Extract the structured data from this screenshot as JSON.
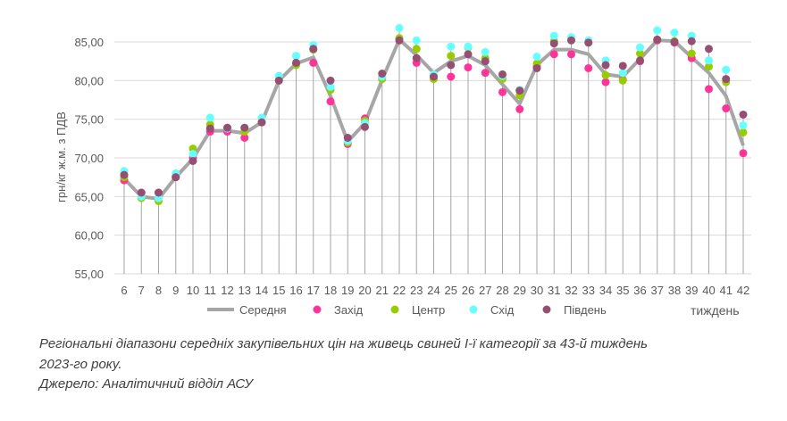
{
  "chart_data": {
    "type": "line",
    "xlabel": "тиждень",
    "ylabel": "грн/кг ж.м. з ПДВ",
    "ylim": [
      55,
      85
    ],
    "yticks": [
      "55,00",
      "60,00",
      "65,00",
      "70,00",
      "75,00",
      "80,00",
      "85,00"
    ],
    "ytick_values": [
      55,
      60,
      65,
      70,
      75,
      80,
      85
    ],
    "grid": true,
    "legend_position": "bottom",
    "x": [
      6,
      7,
      8,
      9,
      10,
      11,
      12,
      13,
      14,
      15,
      16,
      17,
      18,
      19,
      20,
      21,
      22,
      23,
      24,
      25,
      26,
      27,
      28,
      29,
      30,
      31,
      32,
      33,
      34,
      35,
      36,
      37,
      38,
      39,
      40,
      41,
      42
    ],
    "series": [
      {
        "name": "Середня",
        "kind": "line",
        "color": "#A6A6A6",
        "values": [
          67.3,
          65.0,
          64.7,
          67.5,
          69.9,
          73.5,
          73.5,
          73.2,
          74.6,
          80.0,
          82.2,
          83.0,
          78.0,
          72.1,
          74.5,
          80.1,
          85.3,
          83.3,
          81.0,
          82.5,
          83.2,
          82.0,
          79.5,
          77.0,
          82.0,
          84.0,
          84.0,
          83.4,
          80.8,
          80.5,
          82.8,
          85.2,
          85.1,
          83.0,
          81.0,
          78.0,
          71.6
        ]
      },
      {
        "name": "Захід",
        "kind": "dot",
        "color": "#FF3399",
        "values": [
          67.1,
          65.5,
          65.5,
          67.5,
          70.0,
          73.4,
          73.4,
          72.6,
          74.6,
          80.0,
          82.2,
          82.3,
          77.3,
          71.8,
          75.1,
          80.5,
          85.4,
          82.3,
          80.5,
          80.5,
          81.7,
          81.0,
          78.5,
          76.3,
          81.8,
          83.4,
          83.4,
          81.6,
          79.8,
          80.1,
          82.5,
          85.2,
          84.9,
          82.9,
          78.9,
          76.4,
          70.6
        ]
      },
      {
        "name": "Центр",
        "kind": "dot",
        "color": "#99CC00",
        "values": [
          67.5,
          64.8,
          64.4,
          67.6,
          71.2,
          74.3,
          73.9,
          73.4,
          74.6,
          80.0,
          82.0,
          84.0,
          78.8,
          72.0,
          74.8,
          80.2,
          85.5,
          84.1,
          80.2,
          83.2,
          84.3,
          82.9,
          80.2,
          78.1,
          82.2,
          85.1,
          85.3,
          84.9,
          80.7,
          80.0,
          83.5,
          85.3,
          85.1,
          83.5,
          81.8,
          79.8,
          73.3
        ]
      },
      {
        "name": "Схід",
        "kind": "dot",
        "color": "#66FFFF",
        "values": [
          68.3,
          65.0,
          64.8,
          68.0,
          70.5,
          75.2,
          73.8,
          73.9,
          75.2,
          80.6,
          83.2,
          84.6,
          79.2,
          72.2,
          74.5,
          80.5,
          86.8,
          85.2,
          80.8,
          84.4,
          84.4,
          83.7,
          80.6,
          78.8,
          83.1,
          85.8,
          85.6,
          85.2,
          82.6,
          81.0,
          84.3,
          86.5,
          86.2,
          85.8,
          82.6,
          81.4,
          74.2
        ]
      },
      {
        "name": "Південь",
        "kind": "dot",
        "color": "#954F72",
        "values": [
          67.8,
          65.5,
          65.5,
          67.5,
          69.6,
          73.8,
          73.9,
          73.9,
          74.6,
          80.0,
          82.3,
          84.1,
          80.0,
          72.6,
          74.0,
          80.9,
          85.2,
          82.9,
          80.5,
          82.0,
          83.4,
          82.5,
          80.8,
          78.7,
          81.6,
          84.8,
          85.2,
          84.9,
          82.0,
          81.9,
          82.6,
          85.3,
          85.0,
          85.1,
          84.1,
          80.2,
          75.6
        ]
      }
    ]
  },
  "caption": {
    "line1": "Регіональні діапазони середніх закупівельних цін на живець свиней І-ї категорії за 43-й тиждень",
    "line2": "2023-го року.",
    "line3": "Джерело: Аналітичний відділ АСУ"
  }
}
